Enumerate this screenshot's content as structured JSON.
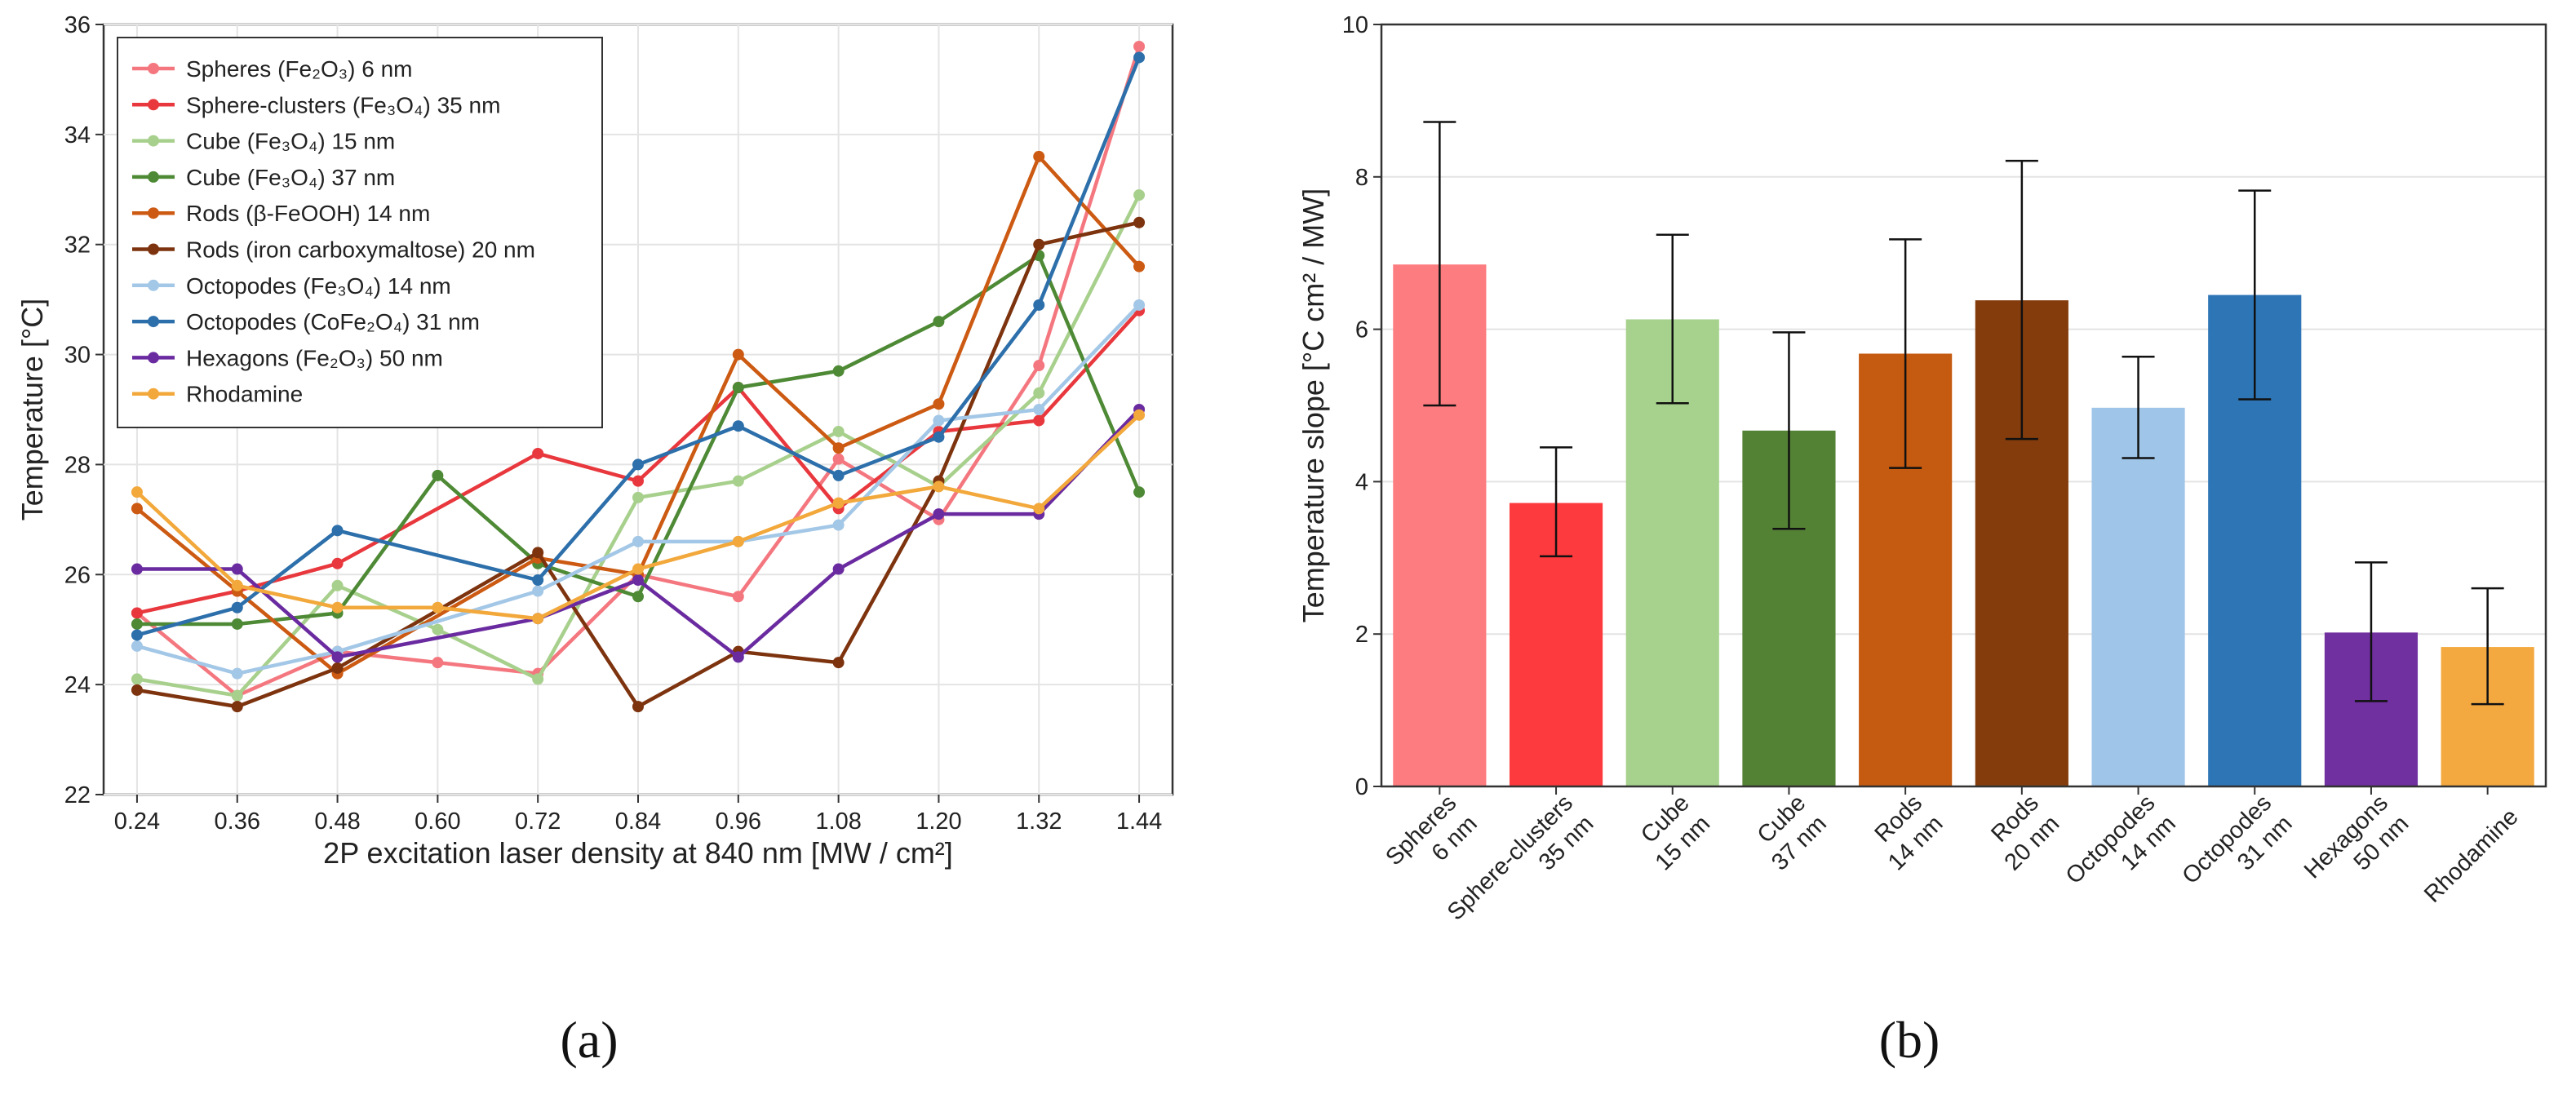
{
  "chart_data": [
    {
      "type": "line",
      "panel_label": "(a)",
      "xlabel": "2P excitation laser density at 840 nm [MW / cm²]",
      "ylabel": "Temperature [°C]",
      "x": [
        0.24,
        0.36,
        0.48,
        0.6,
        0.72,
        0.84,
        0.96,
        1.08,
        1.2,
        1.32,
        1.44
      ],
      "x_tick_labels": [
        "0.24",
        "0.36",
        "0.48",
        "0.60",
        "0.72",
        "0.84",
        "0.96",
        "1.08",
        "1.20",
        "1.32",
        "1.44"
      ],
      "ylim": [
        22,
        36
      ],
      "y_ticks": [
        "22",
        "24",
        "26",
        "28",
        "30",
        "32",
        "34",
        "36"
      ],
      "grid": true,
      "legend_position": "top-left",
      "series": [
        {
          "name": "Spheres (Fe₂O₃) 6 nm",
          "color": "#f4777f",
          "values": [
            25.3,
            23.8,
            24.6,
            24.4,
            24.2,
            26.0,
            25.6,
            28.1,
            27.0,
            29.8,
            35.6
          ]
        },
        {
          "name": "Sphere-clusters (Fe₃O₄) 35 nm",
          "color": "#e8383d",
          "values": [
            25.3,
            25.7,
            26.2,
            null,
            28.2,
            27.7,
            29.4,
            27.2,
            28.6,
            28.8,
            30.8
          ]
        },
        {
          "name": "Cube (Fe₃O₄) 15 nm",
          "color": "#a8d08d",
          "values": [
            24.1,
            23.8,
            25.8,
            25.0,
            24.1,
            27.4,
            27.7,
            28.6,
            27.6,
            29.3,
            32.9
          ]
        },
        {
          "name": "Cube (Fe₃O₄) 37 nm",
          "color": "#4e8a35",
          "values": [
            25.1,
            25.1,
            25.3,
            27.8,
            26.2,
            25.6,
            29.4,
            29.7,
            30.6,
            31.8,
            27.5
          ]
        },
        {
          "name": "Rods (β-FeOOH) 14 nm",
          "color": "#cc5a12",
          "values": [
            27.2,
            25.7,
            24.2,
            null,
            26.3,
            26.0,
            30.0,
            28.3,
            29.1,
            33.6,
            31.6
          ]
        },
        {
          "name": "Rods (iron carboxymaltose) 20 nm",
          "color": "#7d330e",
          "values": [
            23.9,
            23.6,
            24.3,
            null,
            26.4,
            23.6,
            24.6,
            24.4,
            27.7,
            32.0,
            32.4
          ]
        },
        {
          "name": "Octopodes (Fe₃O₄) 14 nm",
          "color": "#a3c7e6",
          "values": [
            24.7,
            24.2,
            24.6,
            null,
            25.7,
            26.6,
            26.6,
            26.9,
            28.8,
            29.0,
            30.9
          ]
        },
        {
          "name": "Octopodes (CoFe₂O₄) 31 nm",
          "color": "#2c6faa",
          "values": [
            24.9,
            25.4,
            26.8,
            null,
            25.9,
            28.0,
            28.7,
            27.8,
            28.5,
            30.9,
            35.4
          ]
        },
        {
          "name": "Hexagons (Fe₂O₃) 50 nm",
          "color": "#6a2ba0",
          "values": [
            26.1,
            26.1,
            24.5,
            null,
            25.2,
            25.9,
            24.5,
            26.1,
            27.1,
            27.1,
            29.0
          ]
        },
        {
          "name": "Rhodamine",
          "color": "#f2a83b",
          "values": [
            27.5,
            25.8,
            25.4,
            25.4,
            25.2,
            26.1,
            26.6,
            27.3,
            27.6,
            27.2,
            28.9
          ]
        }
      ]
    },
    {
      "type": "bar",
      "panel_label": "(b)",
      "xlabel": "",
      "ylabel": "Temperature slope [°C cm² / MW]",
      "ylim": [
        0,
        10
      ],
      "y_ticks": [
        "0",
        "2",
        "4",
        "6",
        "8",
        "10"
      ],
      "grid": true,
      "categories": [
        [
          "Spheres",
          "6 nm"
        ],
        [
          "Sphere-clusters",
          "35 nm"
        ],
        [
          "Cube",
          "15 nm"
        ],
        [
          "Cube",
          "37 nm"
        ],
        [
          "Rods",
          "14 nm"
        ],
        [
          "Rods",
          "20 nm"
        ],
        [
          "Octopodes",
          "14 nm"
        ],
        [
          "Octopodes",
          "31 nm"
        ],
        [
          "Hexagons",
          "50 nm"
        ],
        [
          "Rhodamine"
        ]
      ],
      "values": [
        6.85,
        3.72,
        6.13,
        4.67,
        5.68,
        6.38,
        4.97,
        6.45,
        2.02,
        1.83
      ],
      "error_low": [
        5.0,
        3.02,
        5.03,
        3.38,
        4.18,
        4.56,
        4.31,
        5.08,
        1.12,
        1.08
      ],
      "error_high": [
        8.72,
        4.45,
        7.24,
        5.96,
        7.18,
        8.21,
        5.64,
        7.82,
        2.94,
        2.6
      ],
      "colors": [
        "#fd7c80",
        "#fd3a3d",
        "#a6d28d",
        "#548235",
        "#c55a11",
        "#843c0c",
        "#9fc5e8",
        "#2e75b6",
        "#7030a0",
        "#f4a940"
      ]
    }
  ]
}
